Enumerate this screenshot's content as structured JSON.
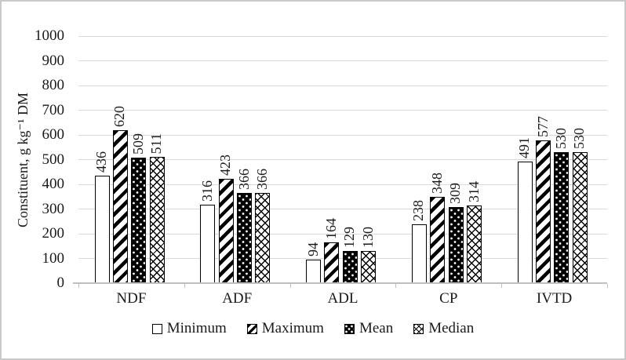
{
  "chart_data": {
    "type": "bar",
    "title": "",
    "categories": [
      "NDF",
      "ADF",
      "ADL",
      "CP",
      "IVTD"
    ],
    "series": [
      {
        "name": "Minimum",
        "pattern": "plain",
        "values": [
          436,
          316,
          94,
          238,
          491
        ]
      },
      {
        "name": "Maximum",
        "pattern": "hatch",
        "values": [
          620,
          423,
          164,
          348,
          577
        ]
      },
      {
        "name": "Mean",
        "pattern": "dots",
        "values": [
          509,
          366,
          129,
          309,
          530
        ]
      },
      {
        "name": "Median",
        "pattern": "cross",
        "values": [
          511,
          366,
          130,
          314,
          530
        ]
      }
    ],
    "xlabel": "",
    "ylabel": "Constituent, g kg⁻¹ DM",
    "ylim": [
      0,
      1000
    ],
    "yticks": [
      0,
      100,
      200,
      300,
      400,
      500,
      600,
      700,
      800,
      900,
      1000
    ],
    "grid": true,
    "bar_value_labels": true,
    "bar_label_rotation_deg": 90,
    "legend_position": "bottom",
    "colors": {
      "grid": "#d9d9d9",
      "axis": "#bfbfbf",
      "text": "#1a1a1a",
      "bar_outline": "#000000",
      "background": "#ffffff",
      "frame_border": "#c9c9c9"
    }
  }
}
